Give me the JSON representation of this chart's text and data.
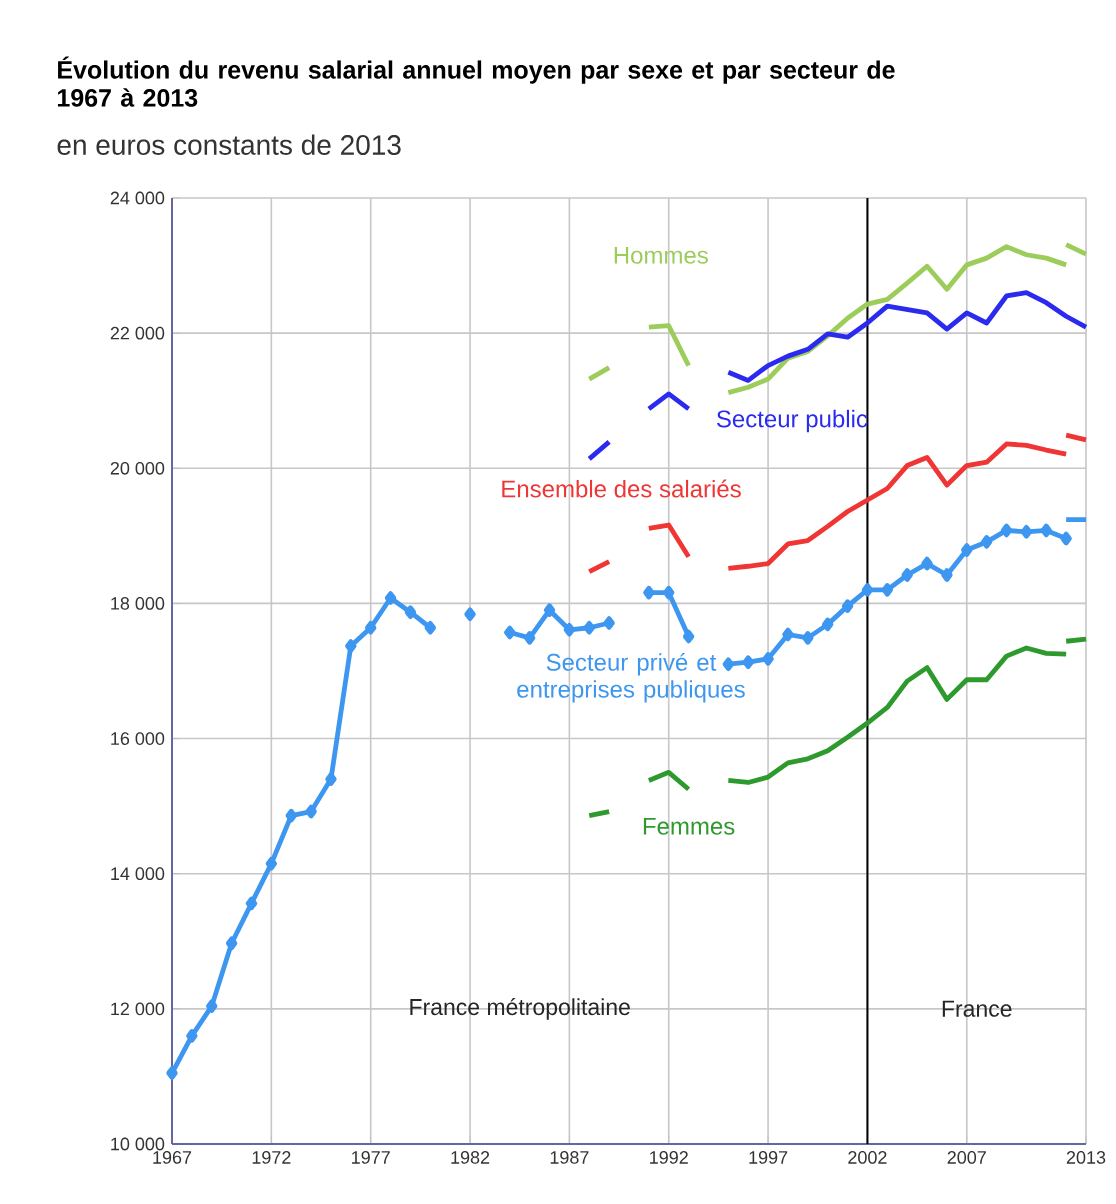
{
  "chart_data": {
    "type": "line",
    "title": "Évolution du revenu salarial annuel moyen par sexe et par secteur de 1967 à 2013",
    "subtitle": "en euros constants de 2013",
    "xlim": [
      1967,
      2013
    ],
    "xticks": [
      1967,
      1972,
      1977,
      1982,
      1987,
      1992,
      1997,
      2002,
      2007,
      2013
    ],
    "ylim": [
      10000,
      24000
    ],
    "yticks": [
      {
        "value": 10000,
        "label": "10 000"
      },
      {
        "value": 12000,
        "label": "12 000"
      },
      {
        "value": 14000,
        "label": "14 000"
      },
      {
        "value": 16000,
        "label": "16 000"
      },
      {
        "value": 18000,
        "label": "18 000"
      },
      {
        "value": 20000,
        "label": "20 000"
      },
      {
        "value": 22000,
        "label": "22 000"
      },
      {
        "value": 24000,
        "label": "24 000"
      }
    ],
    "grid": true,
    "ref_lines": [
      {
        "axis": "x",
        "value": 2002,
        "color": "#000000"
      }
    ],
    "annotations": [
      "France métropolitaine",
      "France"
    ],
    "series": [
      {
        "name": "Hommes",
        "color": "#9ccc5a",
        "x": [
          1988,
          1989,
          1990,
          1991,
          1992,
          1993,
          1994,
          1995,
          1996,
          1997,
          1998,
          1999,
          2000,
          2001,
          2002,
          2003,
          2004,
          2005,
          2006,
          2007,
          2008,
          2009,
          2010,
          2011,
          2012
        ],
        "values": [
          21320,
          21490,
          null,
          22090,
          22110,
          21520,
          null,
          21120,
          21200,
          21320,
          21630,
          21730,
          21960,
          22220,
          22430,
          22500,
          22740,
          22990,
          22650,
          23010,
          23110,
          23280,
          23160,
          23110,
          23010
        ]
      },
      {
        "name": "Secteur public",
        "color": "#2b2bf0",
        "x": [
          1988,
          1989,
          1990,
          1991,
          1992,
          1993,
          1994,
          1995,
          1996,
          1997,
          1998,
          1999,
          2000,
          2001,
          2002,
          2003,
          2004,
          2005,
          2006,
          2007,
          2008,
          2009,
          2010,
          2011,
          2012,
          2013
        ],
        "values": [
          20140,
          20390,
          null,
          20880,
          21100,
          20880,
          null,
          21420,
          21300,
          21520,
          21660,
          21760,
          21990,
          21940,
          22150,
          22400,
          22350,
          22300,
          22060,
          22300,
          22150,
          22550,
          22600,
          22450,
          22250,
          22090
        ]
      },
      {
        "name": "Ensemble des salariés",
        "color": "#f03535",
        "x": [
          1988,
          1989,
          1990,
          1991,
          1992,
          1993,
          1994,
          1995,
          1996,
          1997,
          1998,
          1999,
          2000,
          2001,
          2002,
          2003,
          2004,
          2005,
          2006,
          2007,
          2008,
          2009,
          2010,
          2011,
          2012
        ],
        "values": [
          18470,
          18620,
          null,
          19110,
          19160,
          18690,
          null,
          18520,
          18550,
          18590,
          18880,
          18930,
          19140,
          19360,
          19530,
          19700,
          20040,
          20160,
          19750,
          20040,
          20090,
          20360,
          20340,
          20270,
          20210
        ]
      },
      {
        "name": "Secteur privé et entreprises publiques",
        "color": "#3d96f0",
        "marker": "diamond",
        "x": [
          1967,
          1968,
          1969,
          1970,
          1971,
          1972,
          1973,
          1974,
          1975,
          1976,
          1977,
          1978,
          1979,
          1980,
          1981,
          1982,
          1983,
          1984,
          1985,
          1986,
          1987,
          1988,
          1989,
          1990,
          1991,
          1992,
          1993,
          1994,
          1995,
          1996,
          1997,
          1998,
          1999,
          2000,
          2001,
          2002,
          2003,
          2004,
          2005,
          2006,
          2007,
          2008,
          2009,
          2010,
          2011,
          2012
        ],
        "values": [
          11050,
          11600,
          12040,
          12970,
          13560,
          14150,
          14860,
          14920,
          15400,
          17370,
          17640,
          18080,
          17870,
          17640,
          null,
          17840,
          null,
          17570,
          17490,
          17900,
          17610,
          17640,
          17710,
          null,
          18160,
          18160,
          17510,
          null,
          17100,
          17130,
          17180,
          17540,
          17490,
          17690,
          17960,
          18200,
          18200,
          18420,
          18590,
          18420,
          18790,
          18910,
          19080,
          19060,
          19080,
          18960
        ]
      },
      {
        "name": "Femmes",
        "color": "#2e9a2e",
        "x": [
          1988,
          1989,
          1990,
          1991,
          1992,
          1993,
          1994,
          1995,
          1996,
          1997,
          1998,
          1999,
          2000,
          2001,
          2002,
          2003,
          2004,
          2005,
          2006,
          2007,
          2008,
          2009,
          2010,
          2011,
          2012
        ],
        "values": [
          14860,
          14920,
          null,
          15380,
          15500,
          15250,
          null,
          15380,
          15350,
          15430,
          15640,
          15700,
          15820,
          16020,
          16230,
          16460,
          16850,
          17050,
          16580,
          16870,
          16870,
          17220,
          17340,
          17260,
          17250
        ]
      },
      {
        "color": "#9ccc5a",
        "x": [
          2012,
          2013
        ],
        "values": [
          23310,
          23170
        ]
      },
      {
        "color": "#f03535",
        "x": [
          2012,
          2013
        ],
        "values": [
          20490,
          20420
        ]
      },
      {
        "color": "#3d96f0",
        "x": [
          2012,
          2013
        ],
        "values": [
          19240,
          19240
        ]
      },
      {
        "color": "#2e9a2e",
        "x": [
          2012,
          2013
        ],
        "values": [
          17440,
          17470
        ]
      }
    ]
  }
}
